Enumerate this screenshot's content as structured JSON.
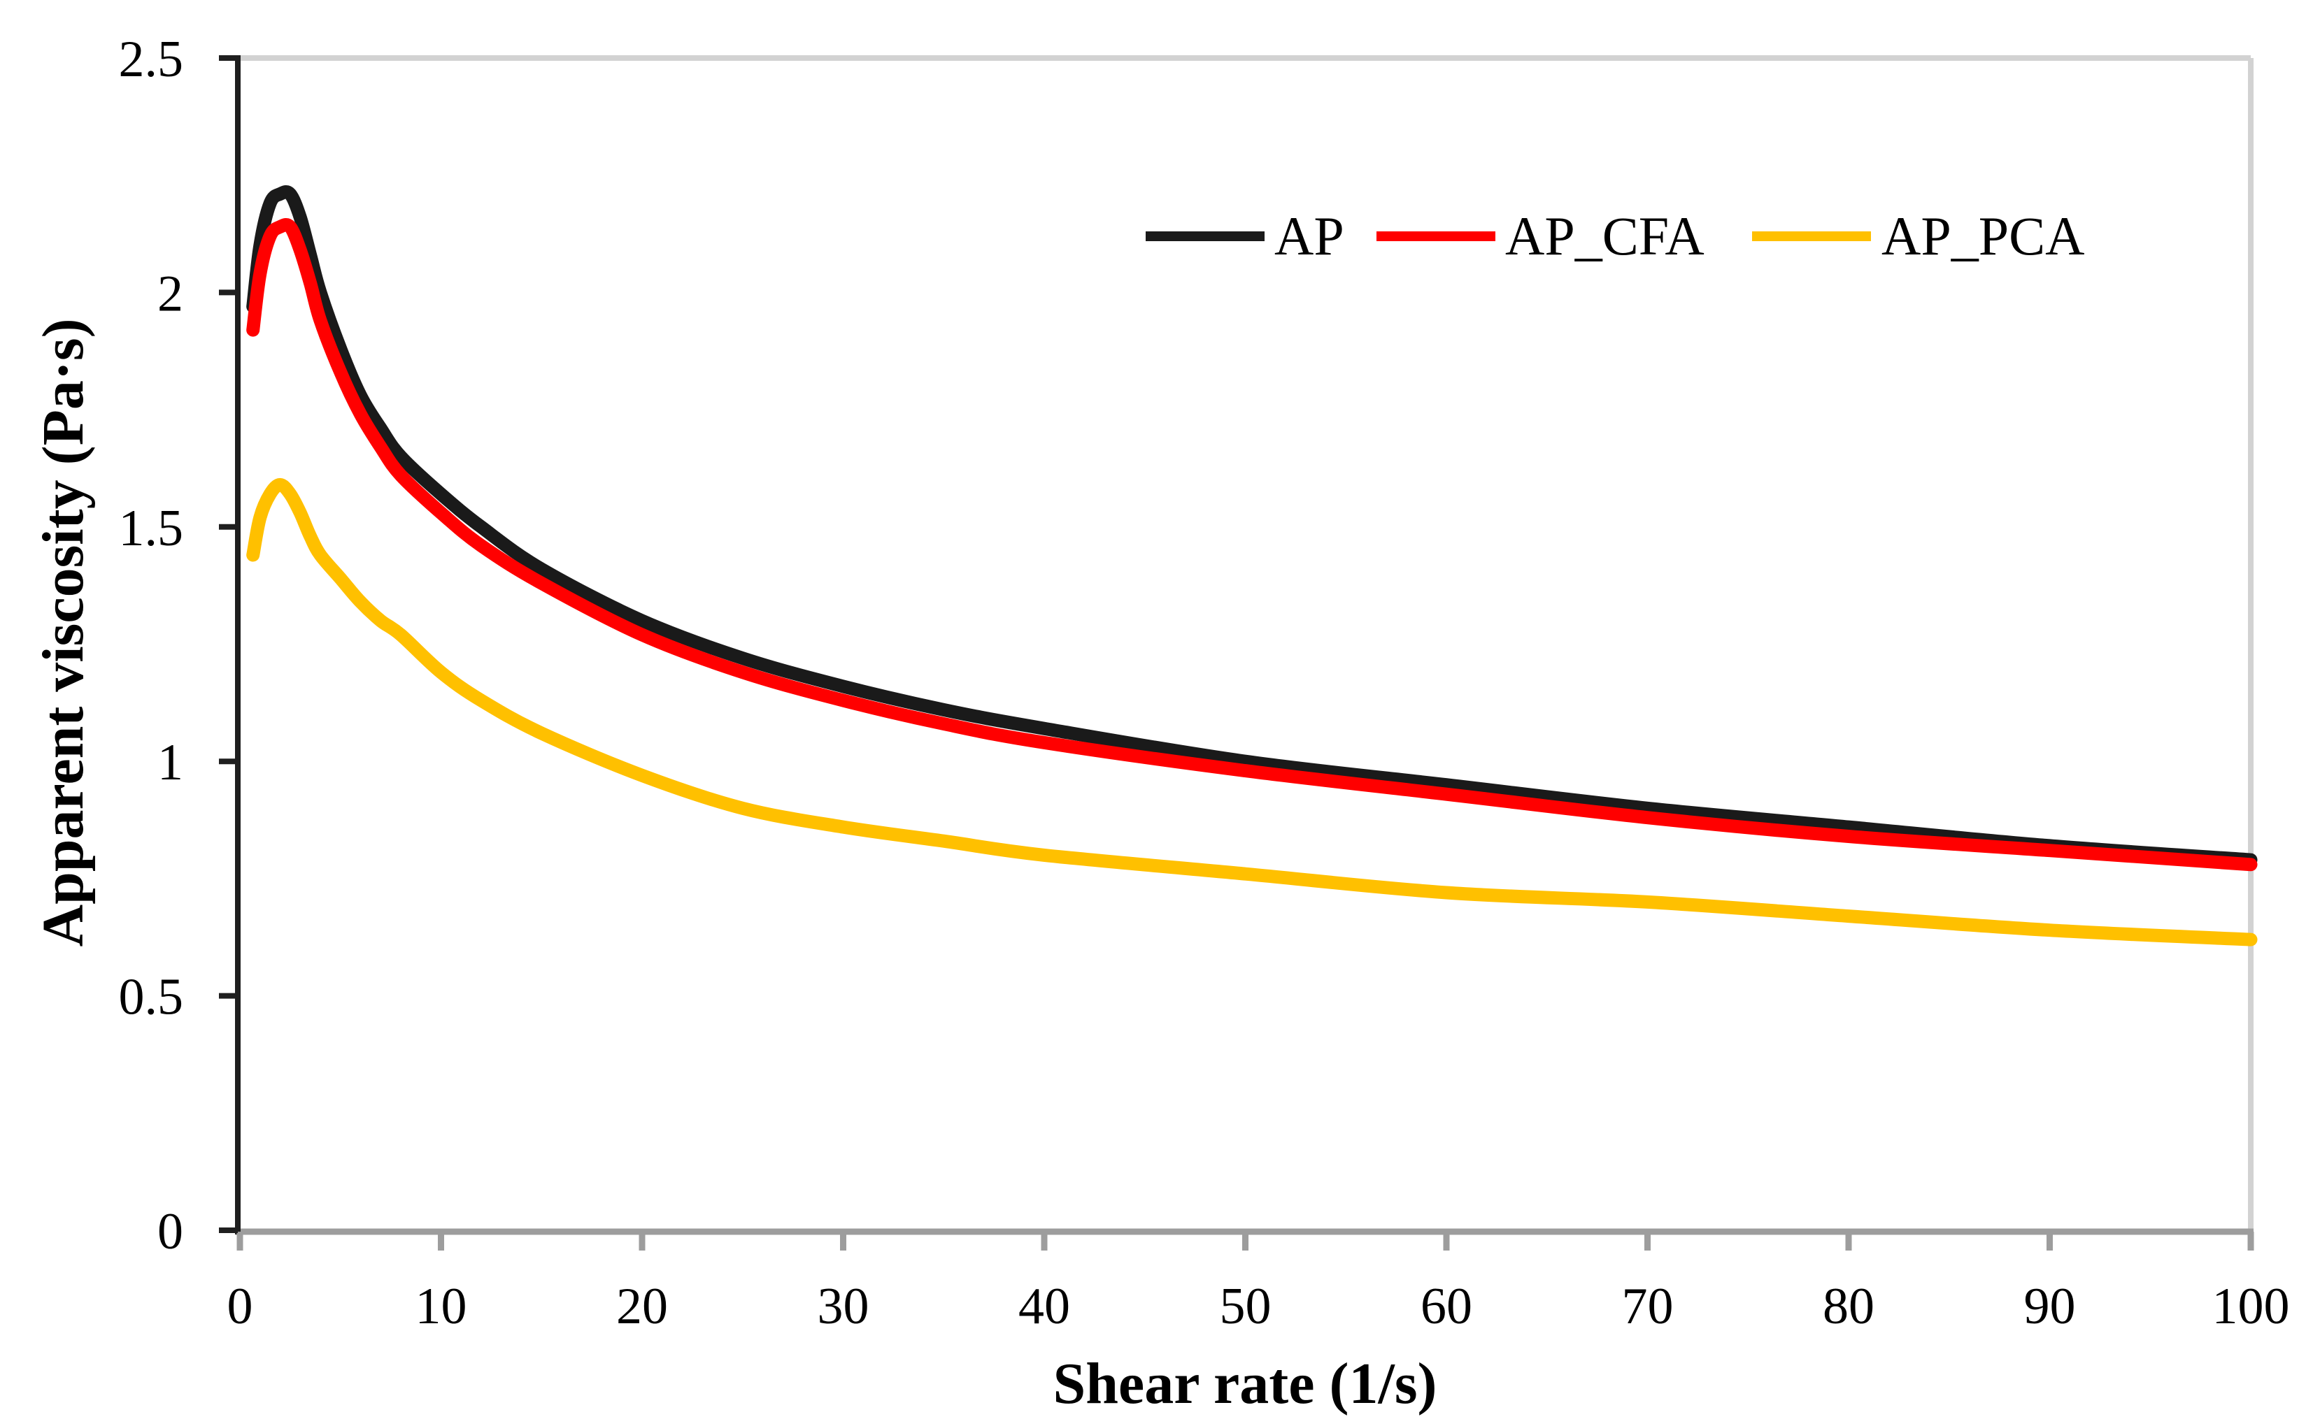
{
  "chart_data": {
    "type": "line",
    "title": "",
    "xlabel": "Shear rate (1/s)",
    "ylabel": "Apparent viscosity (Pa·s)",
    "xlim": [
      0,
      100
    ],
    "ylim": [
      0,
      2.5
    ],
    "x_ticks": [
      0,
      10,
      20,
      30,
      40,
      50,
      60,
      70,
      80,
      90,
      100
    ],
    "x_tick_labels": [
      "0",
      "10",
      "20",
      "30",
      "40",
      "50",
      "60",
      "70",
      "80",
      "90",
      "100"
    ],
    "y_ticks": [
      0,
      0.5,
      1,
      1.5,
      2,
      2.5
    ],
    "y_tick_labels": [
      "0",
      "0.5",
      "1",
      "1.5",
      "2",
      "2.5"
    ],
    "grid": false,
    "legend_position": "top-right-inside",
    "x": [
      0.65,
      1,
      1.5,
      2,
      2.5,
      3,
      3.5,
      4,
      5,
      6,
      7,
      8,
      10,
      12,
      15,
      20,
      25,
      30,
      35,
      40,
      50,
      60,
      70,
      80,
      90,
      100
    ],
    "series": [
      {
        "name": "AP",
        "color": "#1a1a1a",
        "y": [
          1.97,
          2.1,
          2.19,
          2.21,
          2.21,
          2.16,
          2.08,
          2.0,
          1.88,
          1.78,
          1.71,
          1.65,
          1.57,
          1.5,
          1.41,
          1.3,
          1.22,
          1.16,
          1.11,
          1.07,
          1.0,
          0.95,
          0.9,
          0.86,
          0.82,
          0.79
        ]
      },
      {
        "name": "AP_CFA",
        "color": "#ff0000",
        "y": [
          1.92,
          2.04,
          2.12,
          2.14,
          2.14,
          2.09,
          2.02,
          1.94,
          1.83,
          1.74,
          1.67,
          1.61,
          1.53,
          1.46,
          1.38,
          1.27,
          1.19,
          1.13,
          1.08,
          1.04,
          0.98,
          0.93,
          0.88,
          0.84,
          0.81,
          0.78
        ]
      },
      {
        "name": "AP_PCA",
        "color": "#ffc000",
        "y": [
          1.44,
          1.52,
          1.57,
          1.59,
          1.57,
          1.53,
          1.48,
          1.44,
          1.39,
          1.34,
          1.3,
          1.27,
          1.19,
          1.13,
          1.06,
          0.97,
          0.9,
          0.86,
          0.83,
          0.8,
          0.76,
          0.72,
          0.7,
          0.67,
          0.64,
          0.62
        ]
      }
    ],
    "axis_colors": {
      "y_axis": "#1f1f1f",
      "x_axis": "#9d9d9d",
      "plot_border": "#d2d2d2"
    }
  }
}
